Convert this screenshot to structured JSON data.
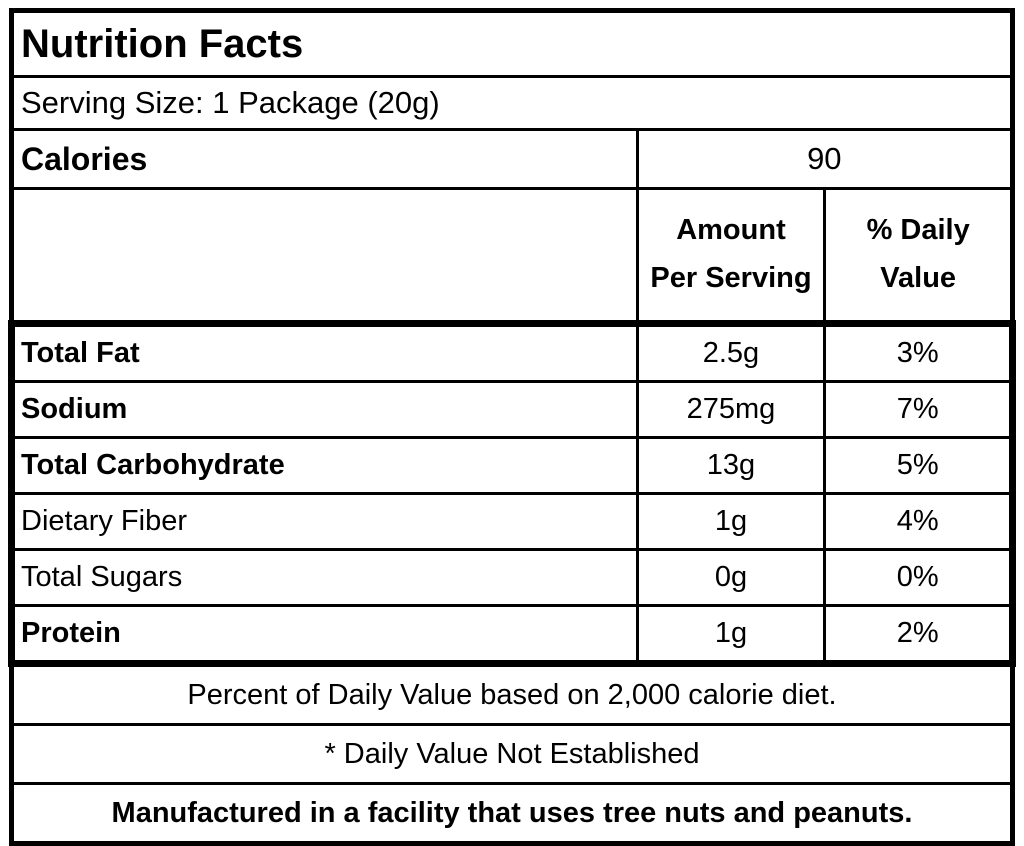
{
  "label": {
    "title": "Nutrition Facts",
    "serving_size": "Serving Size: 1 Package (20g)",
    "calories": {
      "label": "Calories",
      "value": "90"
    },
    "columns": {
      "amount": {
        "line1": "Amount",
        "line2": "Per Serving"
      },
      "daily_value": {
        "line1": "% Daily",
        "line2": "Value"
      }
    },
    "nutrients": [
      {
        "name": "Total Fat",
        "amount": "2.5g",
        "daily_value": "3%"
      },
      {
        "name": "Sodium",
        "amount": "275mg",
        "daily_value": "7%"
      },
      {
        "name": "Total Carbohydrate",
        "amount": "13g",
        "daily_value": "5%"
      },
      {
        "name": "Dietary Fiber",
        "amount": "1g",
        "daily_value": "4%"
      },
      {
        "name": "Total Sugars",
        "amount": "0g",
        "daily_value": "0%"
      },
      {
        "name": "Protein",
        "amount": "1g",
        "daily_value": "2%"
      }
    ],
    "footnotes": [
      "Percent of Daily Value based on 2,000 calorie diet.",
      "* Daily Value Not Established",
      "Manufactured in a facility that uses tree nuts and peanuts."
    ],
    "colors": {
      "text": "#000000",
      "background": "#ffffff",
      "border": "#000000"
    }
  }
}
